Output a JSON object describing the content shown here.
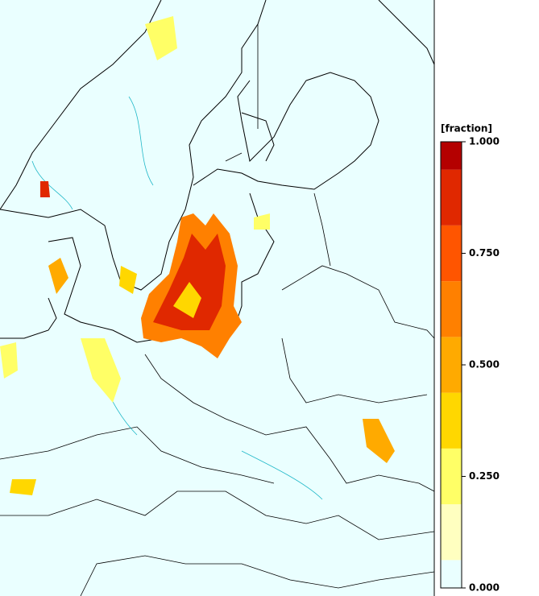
{
  "colorbar": {
    "label": "[fraction]",
    "ticks": [
      {
        "value": 0,
        "label": "0.000"
      },
      {
        "value": 0.25,
        "label": "0.250"
      },
      {
        "value": 0.5,
        "label": "0.500"
      },
      {
        "value": 0.75,
        "label": "0.750"
      },
      {
        "value": 1,
        "label": "1.000"
      }
    ],
    "range": [
      0,
      1
    ],
    "bands": [
      {
        "from": 0,
        "to": 0.0625,
        "color": "#eaffff"
      },
      {
        "from": 0.0625,
        "to": 0.1875,
        "color": "#ffffc0"
      },
      {
        "from": 0.1875,
        "to": 0.3125,
        "color": "#ffff66"
      },
      {
        "from": 0.3125,
        "to": 0.4375,
        "color": "#ffd700"
      },
      {
        "from": 0.4375,
        "to": 0.5625,
        "color": "#ffaa00"
      },
      {
        "from": 0.5625,
        "to": 0.6875,
        "color": "#ff8000"
      },
      {
        "from": 0.6875,
        "to": 0.8125,
        "color": "#ff5500"
      },
      {
        "from": 0.8125,
        "to": 0.9375,
        "color": "#e02800"
      },
      {
        "from": 0.9375,
        "to": 1,
        "color": "#b40000"
      }
    ]
  }
}
